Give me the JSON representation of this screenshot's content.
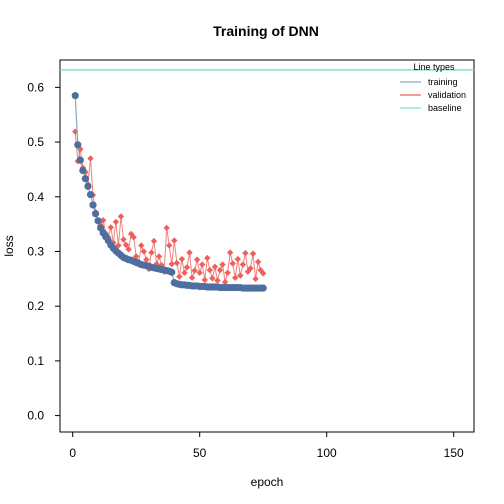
{
  "chart_data": {
    "type": "line",
    "title": "Training of DNN",
    "xlabel": "epoch",
    "ylabel": "loss",
    "xlim": [
      -5,
      158
    ],
    "ylim": [
      -0.03,
      0.65
    ],
    "x_ticks": [
      0,
      50,
      100,
      150
    ],
    "y_ticks": [
      0.0,
      0.1,
      0.2,
      0.3,
      0.4,
      0.5,
      0.6
    ],
    "grid": false,
    "legend": {
      "title": "Line types",
      "position": "top-right",
      "entries": [
        "training",
        "validation",
        "baseline"
      ]
    },
    "colors": {
      "training": "#4e6e9e",
      "training_line": "#8fa8b8",
      "validation": "#f0605a",
      "baseline": "#7fe3c4"
    },
    "baseline": 0.632,
    "series": [
      {
        "name": "training",
        "marker": "circle",
        "x": [
          1,
          2,
          3,
          4,
          5,
          6,
          7,
          8,
          9,
          10,
          11,
          12,
          13,
          14,
          15,
          16,
          17,
          18,
          19,
          20,
          21,
          22,
          23,
          24,
          25,
          26,
          27,
          28,
          29,
          30,
          31,
          32,
          33,
          34,
          35,
          36,
          37,
          38,
          39,
          40,
          41,
          42,
          43,
          44,
          45,
          46,
          47,
          48,
          49,
          50,
          51,
          52,
          53,
          54,
          55,
          56,
          57,
          58,
          59,
          60,
          61,
          62,
          63,
          64,
          65,
          66,
          67,
          68,
          69,
          70,
          71,
          72,
          73,
          74,
          75
        ],
        "y": [
          0.585,
          0.495,
          0.467,
          0.448,
          0.433,
          0.419,
          0.404,
          0.385,
          0.369,
          0.356,
          0.343,
          0.334,
          0.327,
          0.32,
          0.312,
          0.306,
          0.301,
          0.297,
          0.293,
          0.289,
          0.287,
          0.285,
          0.284,
          0.282,
          0.28,
          0.278,
          0.276,
          0.275,
          0.274,
          0.273,
          0.271,
          0.27,
          0.269,
          0.268,
          0.267,
          0.266,
          0.265,
          0.264,
          0.262,
          0.243,
          0.241,
          0.24,
          0.239,
          0.239,
          0.238,
          0.238,
          0.237,
          0.237,
          0.237,
          0.236,
          0.236,
          0.236,
          0.235,
          0.235,
          0.235,
          0.235,
          0.235,
          0.234,
          0.234,
          0.234,
          0.234,
          0.234,
          0.234,
          0.234,
          0.234,
          0.234,
          0.233,
          0.233,
          0.233,
          0.233,
          0.233,
          0.233,
          0.233,
          0.233,
          0.233
        ]
      },
      {
        "name": "validation",
        "marker": "diamond",
        "x": [
          1,
          2,
          3,
          4,
          5,
          6,
          7,
          8,
          9,
          10,
          11,
          12,
          13,
          14,
          15,
          16,
          17,
          18,
          19,
          20,
          21,
          22,
          23,
          24,
          25,
          26,
          27,
          28,
          29,
          30,
          31,
          32,
          33,
          34,
          35,
          36,
          37,
          38,
          39,
          40,
          41,
          42,
          43,
          44,
          45,
          46,
          47,
          48,
          49,
          50,
          51,
          52,
          53,
          54,
          55,
          56,
          57,
          58,
          59,
          60,
          61,
          62,
          63,
          64,
          65,
          66,
          67,
          68,
          69,
          70,
          71,
          72,
          73,
          74,
          75
        ],
        "y": [
          0.519,
          0.465,
          0.487,
          0.453,
          0.445,
          0.423,
          0.47,
          0.403,
          0.372,
          0.355,
          0.348,
          0.357,
          0.333,
          0.326,
          0.344,
          0.316,
          0.354,
          0.311,
          0.364,
          0.322,
          0.312,
          0.304,
          0.332,
          0.326,
          0.291,
          0.281,
          0.311,
          0.3,
          0.285,
          0.268,
          0.298,
          0.319,
          0.277,
          0.291,
          0.275,
          0.263,
          0.343,
          0.311,
          0.277,
          0.32,
          0.279,
          0.254,
          0.286,
          0.261,
          0.271,
          0.298,
          0.252,
          0.265,
          0.285,
          0.261,
          0.276,
          0.248,
          0.288,
          0.266,
          0.251,
          0.272,
          0.247,
          0.266,
          0.276,
          0.244,
          0.261,
          0.298,
          0.278,
          0.252,
          0.286,
          0.256,
          0.276,
          0.297,
          0.263,
          0.269,
          0.296,
          0.25,
          0.281,
          0.266,
          0.26
        ]
      }
    ]
  }
}
